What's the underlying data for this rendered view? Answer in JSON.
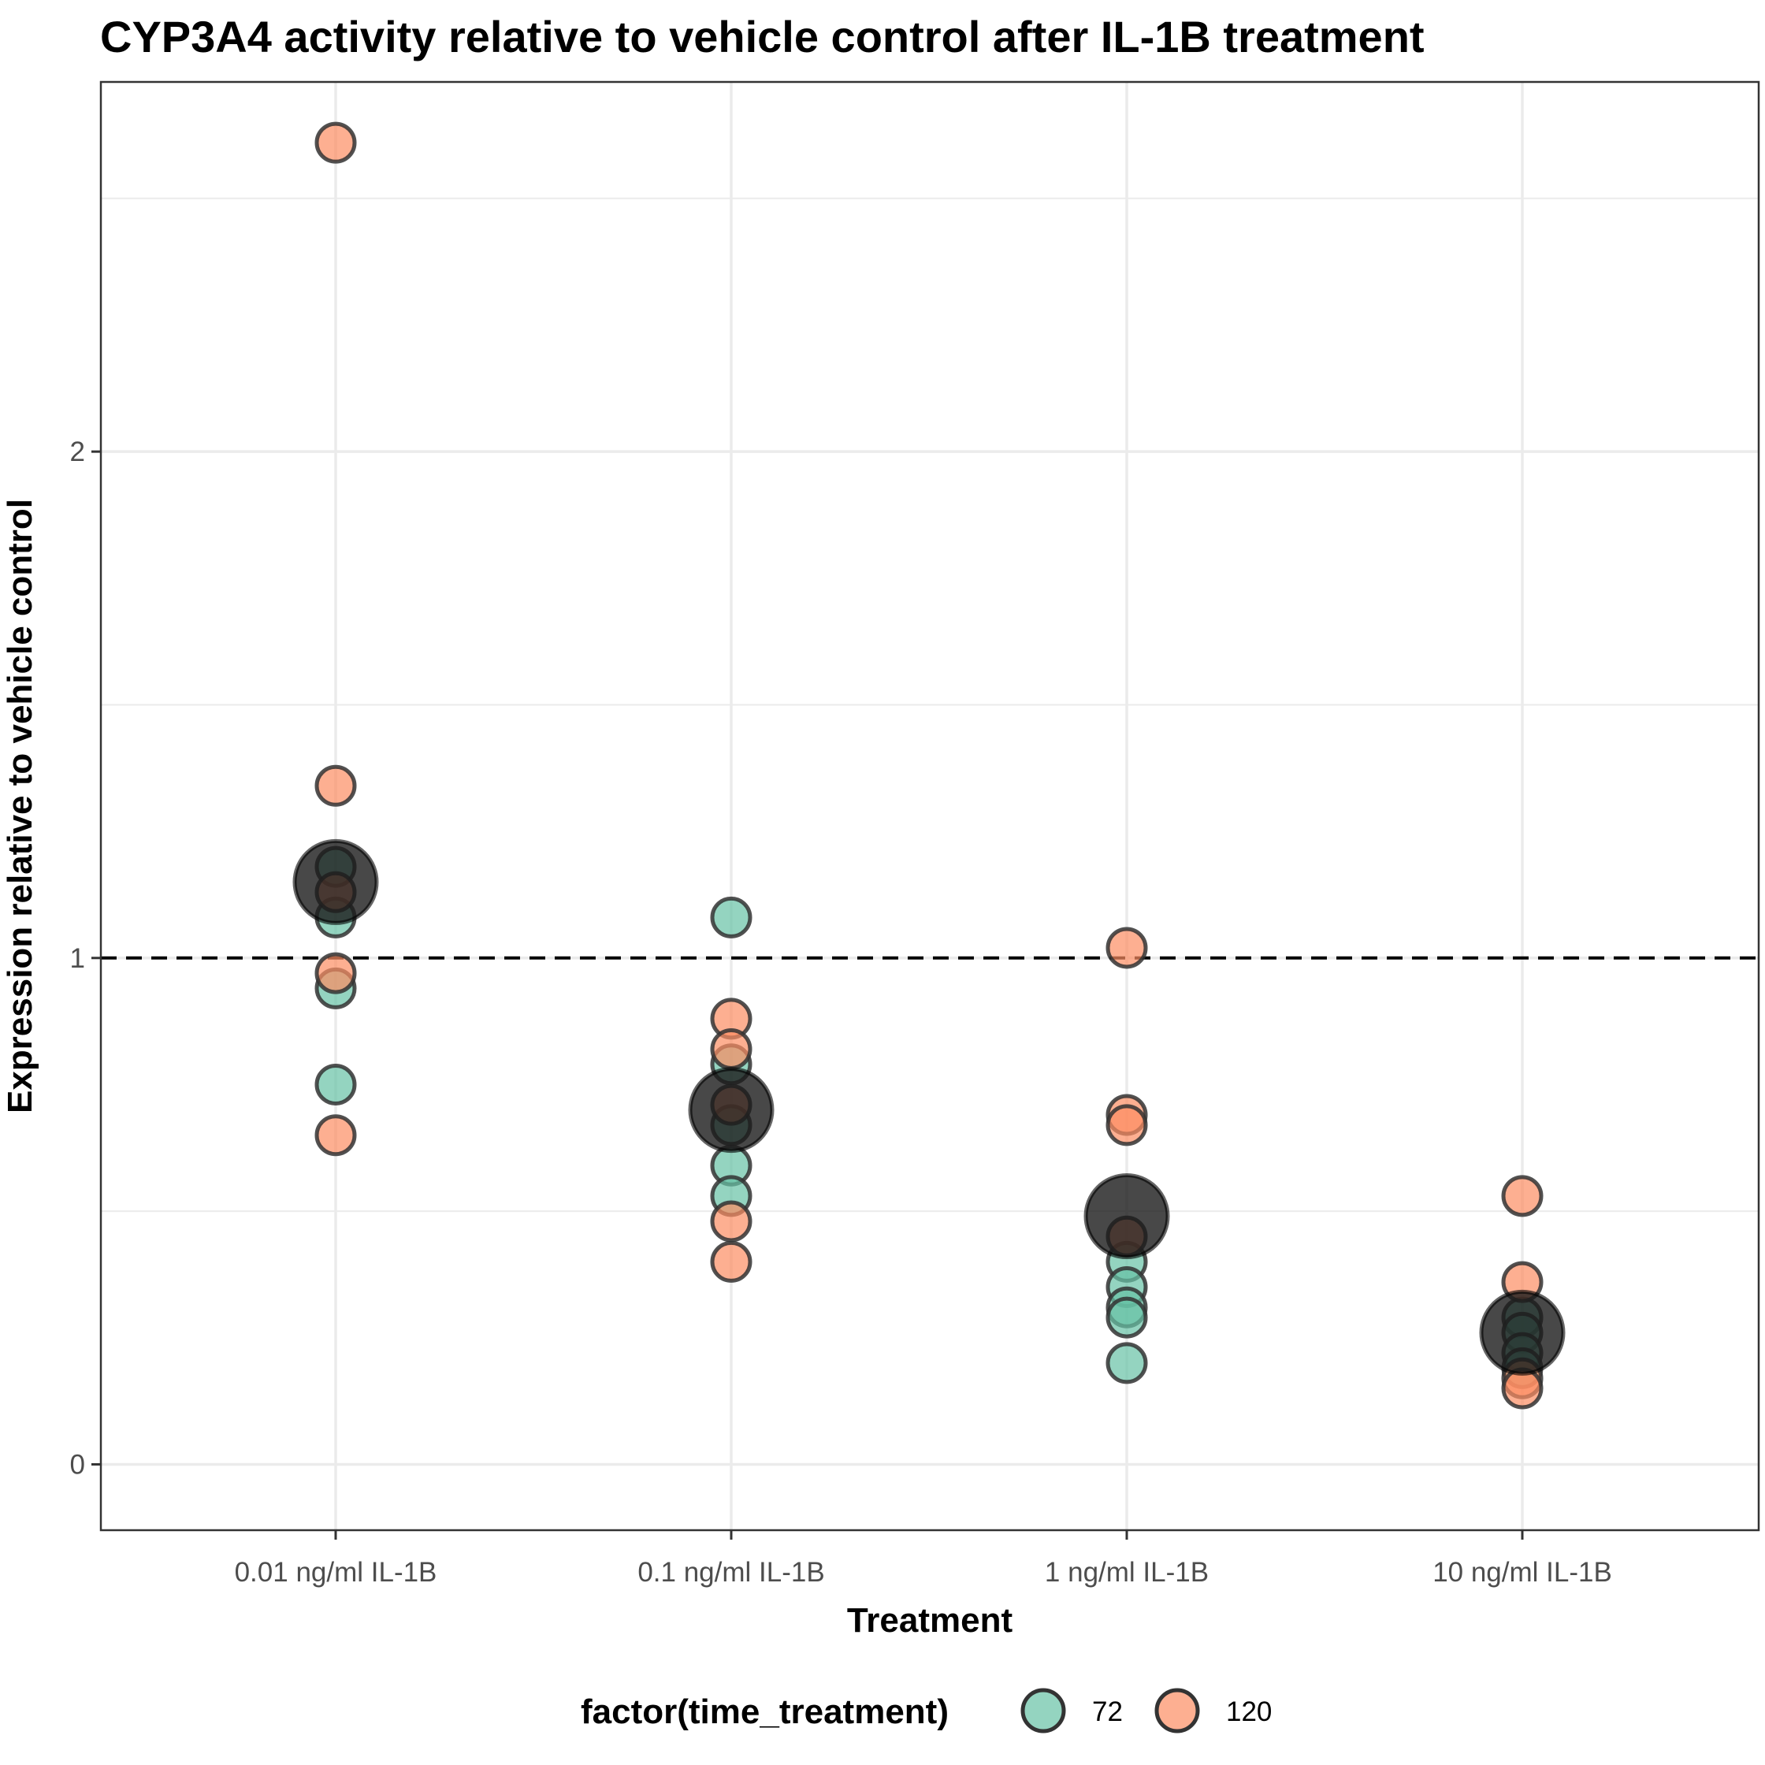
{
  "chart_data": {
    "type": "scatter",
    "title": "CYP3A4 activity relative to vehicle control after IL-1B treatment",
    "xlabel": "Treatment",
    "ylabel": "Expression relative to vehicle control",
    "categories": [
      "0.01 ng/ml IL-1B",
      "0.1 ng/ml IL-1B",
      "1 ng/ml IL-1B",
      "10 ng/ml IL-1B"
    ],
    "ylim": [
      -0.13,
      2.73
    ],
    "yticks": [
      "0",
      "1",
      "2"
    ],
    "grid": true,
    "reference_line": {
      "y": 1,
      "style": "dashed"
    },
    "legend": {
      "title": "factor(time_treatment)",
      "position": "bottom",
      "entries": [
        {
          "label": "72",
          "color": "#66c2a5"
        },
        {
          "label": "120",
          "color": "#fc8d62"
        }
      ]
    },
    "series": [
      {
        "name": "72",
        "color": "#66c2a5",
        "points": [
          {
            "x": "0.01 ng/ml IL-1B",
            "y": 1.18
          },
          {
            "x": "0.01 ng/ml IL-1B",
            "y": 1.08
          },
          {
            "x": "0.01 ng/ml IL-1B",
            "y": 0.94
          },
          {
            "x": "0.01 ng/ml IL-1B",
            "y": 0.75
          },
          {
            "x": "0.1 ng/ml IL-1B",
            "y": 1.08
          },
          {
            "x": "0.1 ng/ml IL-1B",
            "y": 0.79
          },
          {
            "x": "0.1 ng/ml IL-1B",
            "y": 0.67
          },
          {
            "x": "0.1 ng/ml IL-1B",
            "y": 0.59
          },
          {
            "x": "0.1 ng/ml IL-1B",
            "y": 0.53
          },
          {
            "x": "1 ng/ml IL-1B",
            "y": 0.4
          },
          {
            "x": "1 ng/ml IL-1B",
            "y": 0.35
          },
          {
            "x": "1 ng/ml IL-1B",
            "y": 0.31
          },
          {
            "x": "1 ng/ml IL-1B",
            "y": 0.29
          },
          {
            "x": "1 ng/ml IL-1B",
            "y": 0.2
          },
          {
            "x": "10 ng/ml IL-1B",
            "y": 0.29
          },
          {
            "x": "10 ng/ml IL-1B",
            "y": 0.26
          },
          {
            "x": "10 ng/ml IL-1B",
            "y": 0.22
          },
          {
            "x": "10 ng/ml IL-1B",
            "y": 0.19
          }
        ]
      },
      {
        "name": "120",
        "color": "#fc8d62",
        "points": [
          {
            "x": "0.01 ng/ml IL-1B",
            "y": 2.61
          },
          {
            "x": "0.01 ng/ml IL-1B",
            "y": 1.34
          },
          {
            "x": "0.01 ng/ml IL-1B",
            "y": 1.13
          },
          {
            "x": "0.01 ng/ml IL-1B",
            "y": 0.97
          },
          {
            "x": "0.01 ng/ml IL-1B",
            "y": 0.65
          },
          {
            "x": "0.1 ng/ml IL-1B",
            "y": 0.88
          },
          {
            "x": "0.1 ng/ml IL-1B",
            "y": 0.82
          },
          {
            "x": "0.1 ng/ml IL-1B",
            "y": 0.71
          },
          {
            "x": "0.1 ng/ml IL-1B",
            "y": 0.48
          },
          {
            "x": "0.1 ng/ml IL-1B",
            "y": 0.4
          },
          {
            "x": "1 ng/ml IL-1B",
            "y": 1.02
          },
          {
            "x": "1 ng/ml IL-1B",
            "y": 0.69
          },
          {
            "x": "1 ng/ml IL-1B",
            "y": 0.67
          },
          {
            "x": "1 ng/ml IL-1B",
            "y": 0.45
          },
          {
            "x": "10 ng/ml IL-1B",
            "y": 0.53
          },
          {
            "x": "10 ng/ml IL-1B",
            "y": 0.36
          },
          {
            "x": "10 ng/ml IL-1B",
            "y": 0.17
          },
          {
            "x": "10 ng/ml IL-1B",
            "y": 0.15
          }
        ]
      }
    ],
    "summary_points": {
      "color": "#1a1a1a",
      "points": [
        {
          "x": "0.01 ng/ml IL-1B",
          "y": 1.15
        },
        {
          "x": "0.1 ng/ml IL-1B",
          "y": 0.7
        },
        {
          "x": "1 ng/ml IL-1B",
          "y": 0.49
        },
        {
          "x": "10 ng/ml IL-1B",
          "y": 0.26
        }
      ]
    }
  }
}
